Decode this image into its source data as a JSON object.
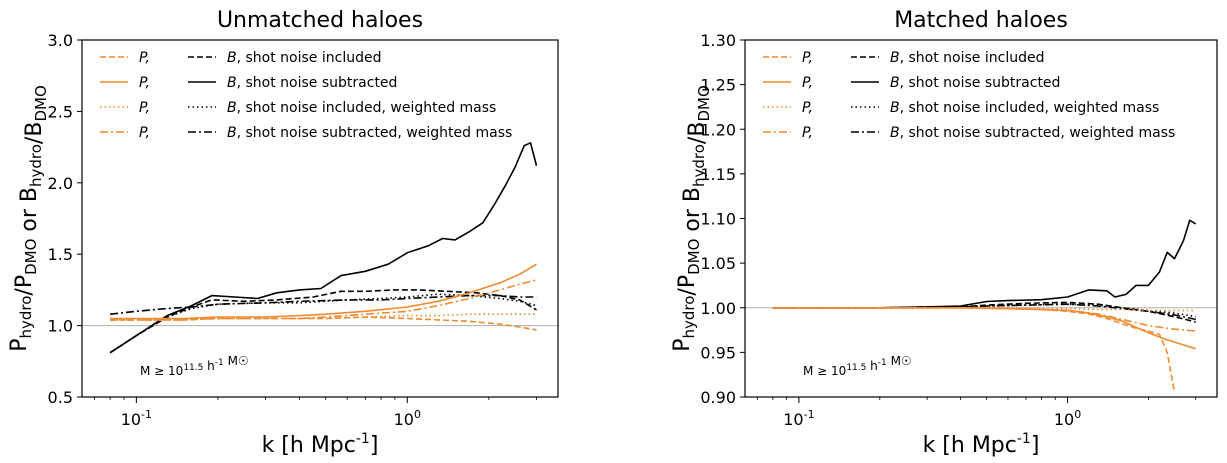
{
  "colors": {
    "orange": "#f28a2e",
    "black": "#000000",
    "refline": "#b0b0b0"
  },
  "chart_data": [
    {
      "type": "line",
      "title": "Unmatched haloes",
      "xlabel": "k [h Mpc^-1]",
      "ylabel": "P_hydro/P_DMO or B_hydro/B_DMO",
      "xscale": "log",
      "xlim": [
        0.063,
        3.6
      ],
      "ylim": [
        0.5,
        3.0
      ],
      "x_ticks": [
        {
          "value": 0.1,
          "label": "10^-1"
        },
        {
          "value": 1,
          "label": "10^0"
        }
      ],
      "y_ticks": [
        {
          "value": 0.5,
          "label": "0.5"
        },
        {
          "value": 1.0,
          "label": "1.0"
        },
        {
          "value": 1.5,
          "label": "1.5"
        },
        {
          "value": 2.0,
          "label": "2.0"
        },
        {
          "value": 2.5,
          "label": "2.5"
        },
        {
          "value": 3.0,
          "label": "3.0"
        }
      ],
      "reference_line": 1.0,
      "legend_position": "top-left",
      "legend": {
        "left": [
          {
            "label": "P,",
            "color": "#f28a2e",
            "dash": "dashed"
          },
          {
            "label": "P,",
            "color": "#f28a2e",
            "dash": "solid"
          },
          {
            "label": "P,",
            "color": "#f28a2e",
            "dash": "dotted"
          },
          {
            "label": "P,",
            "color": "#f28a2e",
            "dash": "dashdot"
          }
        ],
        "right": [
          {
            "label": "B, shot noise included",
            "color": "#000000",
            "dash": "dashed"
          },
          {
            "label": "B, shot noise subtracted",
            "color": "#000000",
            "dash": "solid"
          },
          {
            "label": "B, shot noise included, weighted mass",
            "color": "#000000",
            "dash": "dotted"
          },
          {
            "label": "B, shot noise subtracted, weighted mass",
            "color": "#000000",
            "dash": "dashdot"
          }
        ]
      },
      "annotation": "M ≥ 10^11.5 h^-1 M☉",
      "series": [
        {
          "color": "#000000",
          "dash": "solid",
          "x": [
            0.08,
            0.1,
            0.13,
            0.16,
            0.19,
            0.23,
            0.28,
            0.33,
            0.4,
            0.48,
            0.57,
            0.7,
            0.85,
            1.0,
            1.2,
            1.35,
            1.5,
            1.7,
            1.9,
            2.1,
            2.3,
            2.5,
            2.7,
            2.85,
            3.0
          ],
          "y": [
            0.81,
            0.93,
            1.07,
            1.14,
            1.21,
            1.2,
            1.19,
            1.23,
            1.25,
            1.26,
            1.35,
            1.38,
            1.43,
            1.51,
            1.56,
            1.61,
            1.6,
            1.66,
            1.72,
            1.85,
            1.98,
            2.11,
            2.26,
            2.28,
            2.12
          ]
        },
        {
          "color": "#000000",
          "dash": "dashed",
          "x": [
            0.08,
            0.1,
            0.13,
            0.16,
            0.19,
            0.25,
            0.33,
            0.45,
            0.57,
            0.7,
            0.9,
            1.1,
            1.4,
            1.8,
            2.2,
            2.6,
            3.0
          ],
          "y": [
            0.81,
            0.93,
            1.06,
            1.13,
            1.18,
            1.17,
            1.18,
            1.2,
            1.24,
            1.24,
            1.25,
            1.25,
            1.24,
            1.23,
            1.21,
            1.18,
            1.11
          ]
        },
        {
          "color": "#000000",
          "dash": "dotted",
          "x": [
            0.08,
            0.1,
            0.13,
            0.16,
            0.2,
            0.3,
            0.4,
            0.6,
            0.8,
            1.0,
            1.3,
            1.7,
            2.2,
            2.6,
            3.0
          ],
          "y": [
            0.81,
            0.93,
            1.06,
            1.12,
            1.15,
            1.16,
            1.16,
            1.18,
            1.19,
            1.2,
            1.22,
            1.21,
            1.19,
            1.17,
            1.14
          ]
        },
        {
          "color": "#000000",
          "dash": "dashdot",
          "x": [
            0.08,
            0.1,
            0.13,
            0.16,
            0.2,
            0.3,
            0.4,
            0.6,
            0.8,
            1.0,
            1.3,
            1.7,
            2.2,
            2.6,
            3.0
          ],
          "y": [
            1.08,
            1.1,
            1.12,
            1.13,
            1.15,
            1.16,
            1.17,
            1.18,
            1.18,
            1.19,
            1.2,
            1.21,
            1.21,
            1.2,
            1.2
          ]
        },
        {
          "color": "#f28a2e",
          "dash": "dashed",
          "x": [
            0.08,
            0.1,
            0.15,
            0.2,
            0.3,
            0.4,
            0.5,
            0.7,
            1.0,
            1.3,
            1.7,
            2.2,
            2.6,
            3.0
          ],
          "y": [
            1.04,
            1.04,
            1.04,
            1.05,
            1.05,
            1.05,
            1.05,
            1.06,
            1.05,
            1.04,
            1.03,
            1.01,
            0.99,
            0.97
          ]
        },
        {
          "color": "#f28a2e",
          "dash": "solid",
          "x": [
            0.08,
            0.1,
            0.15,
            0.2,
            0.3,
            0.4,
            0.5,
            0.7,
            1.0,
            1.3,
            1.7,
            2.2,
            2.6,
            3.0
          ],
          "y": [
            1.05,
            1.05,
            1.05,
            1.06,
            1.06,
            1.07,
            1.08,
            1.1,
            1.13,
            1.17,
            1.23,
            1.3,
            1.36,
            1.43
          ]
        },
        {
          "color": "#f28a2e",
          "dash": "dotted",
          "x": [
            0.08,
            0.1,
            0.15,
            0.2,
            0.3,
            0.4,
            0.5,
            0.7,
            1.0,
            1.3,
            1.7,
            2.2,
            2.6,
            3.0
          ],
          "y": [
            1.04,
            1.04,
            1.04,
            1.05,
            1.05,
            1.05,
            1.05,
            1.06,
            1.07,
            1.07,
            1.08,
            1.08,
            1.08,
            1.08
          ]
        },
        {
          "color": "#f28a2e",
          "dash": "dashdot",
          "x": [
            0.08,
            0.1,
            0.15,
            0.2,
            0.3,
            0.4,
            0.5,
            0.7,
            1.0,
            1.3,
            1.7,
            2.2,
            2.6,
            3.0
          ],
          "y": [
            1.04,
            1.04,
            1.04,
            1.05,
            1.05,
            1.05,
            1.06,
            1.08,
            1.1,
            1.14,
            1.19,
            1.25,
            1.29,
            1.32
          ]
        }
      ]
    },
    {
      "type": "line",
      "title": "Matched haloes",
      "xlabel": "k [h Mpc^-1]",
      "ylabel": "P_hydro/P_DMO or B_hydro/B_DMO",
      "xscale": "log",
      "xlim": [
        0.063,
        3.6
      ],
      "ylim": [
        0.9,
        1.3
      ],
      "x_ticks": [
        {
          "value": 0.1,
          "label": "10^-1"
        },
        {
          "value": 1,
          "label": "10^0"
        }
      ],
      "y_ticks": [
        {
          "value": 0.9,
          "label": "0.90"
        },
        {
          "value": 0.95,
          "label": "0.95"
        },
        {
          "value": 1.0,
          "label": "1.00"
        },
        {
          "value": 1.05,
          "label": "1.05"
        },
        {
          "value": 1.1,
          "label": "1.10"
        },
        {
          "value": 1.15,
          "label": "1.15"
        },
        {
          "value": 1.2,
          "label": "1.20"
        },
        {
          "value": 1.25,
          "label": "1.25"
        },
        {
          "value": 1.3,
          "label": "1.30"
        }
      ],
      "reference_line": 1.0,
      "legend_position": "top-left",
      "legend": {
        "left": [
          {
            "label": "P,",
            "color": "#f28a2e",
            "dash": "dashed"
          },
          {
            "label": "P,",
            "color": "#f28a2e",
            "dash": "solid"
          },
          {
            "label": "P,",
            "color": "#f28a2e",
            "dash": "dotted"
          },
          {
            "label": "P,",
            "color": "#f28a2e",
            "dash": "dashdot"
          }
        ],
        "right": [
          {
            "label": "B, shot noise included",
            "color": "#000000",
            "dash": "dashed"
          },
          {
            "label": "B, shot noise subtracted",
            "color": "#000000",
            "dash": "solid"
          },
          {
            "label": "B, shot noise included, weighted mass",
            "color": "#000000",
            "dash": "dotted"
          },
          {
            "label": "B, shot noise subtracted, weighted mass",
            "color": "#000000",
            "dash": "dashdot"
          }
        ]
      },
      "annotation": "M ≥ 10^11.5 h^-1 M☉",
      "series": [
        {
          "color": "#000000",
          "dash": "solid",
          "x": [
            0.08,
            0.1,
            0.15,
            0.2,
            0.3,
            0.4,
            0.5,
            0.6,
            0.8,
            1.0,
            1.2,
            1.4,
            1.5,
            1.65,
            1.8,
            2.0,
            2.2,
            2.35,
            2.5,
            2.7,
            2.85,
            3.0
          ],
          "y": [
            1.0,
            1.0,
            1.0,
            1.0,
            1.001,
            1.002,
            1.007,
            1.008,
            1.009,
            1.012,
            1.02,
            1.019,
            1.012,
            1.015,
            1.025,
            1.025,
            1.04,
            1.062,
            1.055,
            1.075,
            1.098,
            1.094
          ]
        },
        {
          "color": "#000000",
          "dash": "dashed",
          "x": [
            0.08,
            0.2,
            0.3,
            0.4,
            0.5,
            0.7,
            1.0,
            1.3,
            1.6,
            2.0,
            2.5,
            3.0
          ],
          "y": [
            1.0,
            1.0,
            1.001,
            1.001,
            1.003,
            1.005,
            1.006,
            1.004,
            1.0,
            0.996,
            0.99,
            0.984
          ]
        },
        {
          "color": "#000000",
          "dash": "dotted",
          "x": [
            0.08,
            0.2,
            0.3,
            0.4,
            0.5,
            0.7,
            1.0,
            1.3,
            1.6,
            2.0,
            2.5,
            3.0
          ],
          "y": [
            1.0,
            1.0,
            1.0,
            1.001,
            1.002,
            1.003,
            1.004,
            1.003,
            1.0,
            0.997,
            0.994,
            0.99
          ]
        },
        {
          "color": "#000000",
          "dash": "dashdot",
          "x": [
            0.08,
            0.2,
            0.3,
            0.4,
            0.5,
            0.7,
            1.0,
            1.3,
            1.6,
            2.0,
            2.5,
            3.0
          ],
          "y": [
            1.0,
            1.0,
            1.0,
            1.001,
            1.002,
            1.003,
            1.004,
            1.002,
            0.999,
            0.996,
            0.992,
            0.987
          ]
        },
        {
          "color": "#f28a2e",
          "dash": "dashed",
          "x": [
            0.08,
            0.2,
            0.4,
            0.6,
            0.8,
            1.0,
            1.2,
            1.4,
            1.6,
            1.8,
            2.0,
            2.2,
            2.35,
            2.5
          ],
          "y": [
            1.0,
            1.0,
            1.0,
            0.999,
            0.998,
            0.996,
            0.993,
            0.988,
            0.982,
            0.977,
            0.974,
            0.97,
            0.95,
            0.905
          ]
        },
        {
          "color": "#f28a2e",
          "dash": "solid",
          "x": [
            0.08,
            0.2,
            0.4,
            0.6,
            0.8,
            1.0,
            1.2,
            1.4,
            1.6,
            1.8,
            2.0,
            2.3,
            2.6,
            3.0
          ],
          "y": [
            1.0,
            1.0,
            1.0,
            0.999,
            0.998,
            0.997,
            0.994,
            0.99,
            0.985,
            0.978,
            0.972,
            0.965,
            0.96,
            0.954
          ]
        },
        {
          "color": "#f28a2e",
          "dash": "dotted",
          "x": [
            0.08,
            0.2,
            0.4,
            0.6,
            0.8,
            1.0,
            1.3,
            1.6,
            2.0,
            2.5,
            3.0
          ],
          "y": [
            1.0,
            1.0,
            1.0,
            1.0,
            0.999,
            0.999,
            0.998,
            0.998,
            0.997,
            0.997,
            0.997
          ]
        },
        {
          "color": "#f28a2e",
          "dash": "dashdot",
          "x": [
            0.08,
            0.2,
            0.4,
            0.6,
            0.8,
            1.0,
            1.3,
            1.6,
            2.0,
            2.5,
            3.0
          ],
          "y": [
            1.0,
            1.0,
            1.0,
            0.999,
            0.998,
            0.997,
            0.993,
            0.987,
            0.98,
            0.976,
            0.974
          ]
        }
      ]
    }
  ]
}
